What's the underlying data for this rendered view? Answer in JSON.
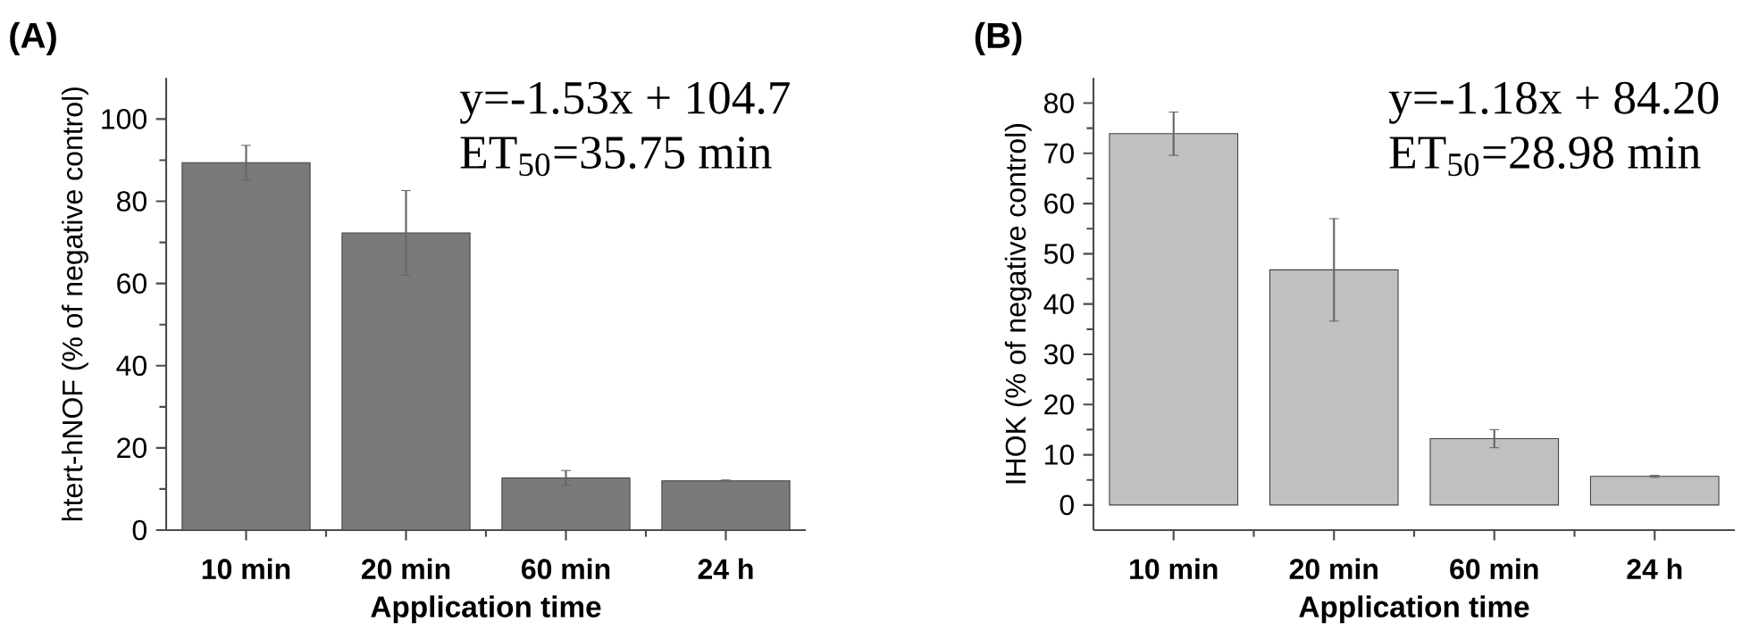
{
  "chart_data": [
    {
      "type": "bar",
      "title": "(A)",
      "xlabel": "Application time",
      "ylabel": "htert-hNOF (% of negative control)",
      "categories": [
        "10 min",
        "20 min",
        "60 min",
        "24 h"
      ],
      "values": [
        89.4,
        72.3,
        12.7,
        12.0
      ],
      "errors": [
        4.2,
        10.3,
        1.8,
        0.2
      ],
      "color": "#7a7a7a",
      "ylim": [
        0,
        110
      ],
      "yticks": [
        0,
        20,
        40,
        60,
        80,
        100
      ],
      "annotations": [
        "y=-1.53x + 104.7",
        "ET$_{50}$=35.75 min"
      ]
    },
    {
      "type": "bar",
      "title": "(B)",
      "xlabel": "Application time",
      "ylabel": "IHOK (% of negative control)",
      "categories": [
        "10 min",
        "20 min",
        "60 min",
        "24 h"
      ],
      "values": [
        73.9,
        46.8,
        13.2,
        5.7
      ],
      "errors": [
        4.3,
        10.2,
        1.8,
        0.2
      ],
      "color": "#c0c0c0",
      "ylim": [
        -5,
        85
      ],
      "yticks": [
        0,
        10,
        20,
        30,
        40,
        50,
        60,
        70,
        80
      ],
      "annotations": [
        "y=-1.18x + 84.20",
        "ET$_{50}$=28.98 min"
      ]
    }
  ]
}
